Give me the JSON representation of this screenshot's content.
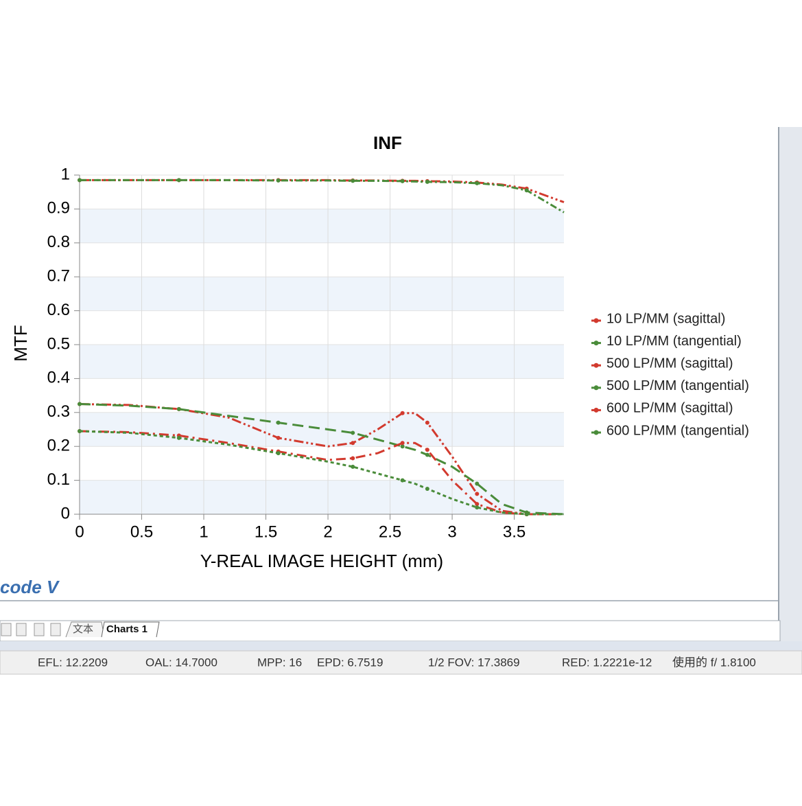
{
  "chart_data": {
    "type": "line",
    "title": "INF",
    "x_label": "Y-REAL IMAGE HEIGHT (mm)",
    "y_label": "MTF",
    "x": [
      0,
      0.4,
      0.8,
      1.2,
      1.6,
      2.0,
      2.2,
      2.4,
      2.6,
      2.7,
      2.8,
      3.0,
      3.2,
      3.4,
      3.6,
      3.9
    ],
    "series": [
      {
        "name": "10 LP/MM (sagittal)",
        "color": "#d23a2e",
        "values": [
          0.985,
          0.985,
          0.985,
          0.985,
          0.985,
          0.985,
          0.984,
          0.984,
          0.983,
          0.983,
          0.982,
          0.981,
          0.978,
          0.972,
          0.96,
          0.92
        ]
      },
      {
        "name": "10 LP/MM (tangential)",
        "color": "#4a8c3a",
        "values": [
          0.985,
          0.985,
          0.985,
          0.985,
          0.984,
          0.984,
          0.983,
          0.983,
          0.982,
          0.981,
          0.98,
          0.979,
          0.976,
          0.97,
          0.955,
          0.89
        ]
      },
      {
        "name": "500 LP/MM (sagittal)",
        "color": "#d23a2e",
        "values": [
          0.325,
          0.322,
          0.31,
          0.285,
          0.225,
          0.2,
          0.21,
          0.25,
          0.298,
          0.298,
          0.27,
          0.17,
          0.06,
          0.01,
          0,
          0
        ]
      },
      {
        "name": "500 LP/MM (tangential)",
        "color": "#4a8c3a",
        "values": [
          0.325,
          0.32,
          0.31,
          0.29,
          0.27,
          0.25,
          0.24,
          0.22,
          0.2,
          0.19,
          0.175,
          0.14,
          0.09,
          0.03,
          0.005,
          0
        ]
      },
      {
        "name": "600 LP/MM (sagittal)",
        "color": "#d23a2e",
        "values": [
          0.245,
          0.242,
          0.232,
          0.21,
          0.185,
          0.16,
          0.165,
          0.18,
          0.21,
          0.21,
          0.19,
          0.1,
          0.03,
          0.005,
          0,
          0
        ]
      },
      {
        "name": "600 LP/MM (tangential)",
        "color": "#4a8c3a",
        "values": [
          0.245,
          0.24,
          0.225,
          0.205,
          0.18,
          0.155,
          0.14,
          0.12,
          0.1,
          0.09,
          0.075,
          0.045,
          0.02,
          0.005,
          0,
          0
        ]
      }
    ],
    "xlim": [
      0,
      3.9
    ],
    "ylim": [
      0,
      1
    ],
    "xticks": [
      0,
      0.5,
      1,
      1.5,
      2,
      2.5,
      3,
      3.5
    ],
    "yticks": [
      0,
      0.1,
      0.2,
      0.3,
      0.4,
      0.5,
      0.6,
      0.7,
      0.8,
      0.9,
      1
    ],
    "grid": true,
    "legend": "right"
  },
  "logo": "code V",
  "tabs": [
    "文本",
    "Charts 1"
  ],
  "status_bar": [
    "EFL: 12.2209",
    "OAL: 14.7000",
    "MPP: 16",
    "EPD: 6.7519",
    "1/2 FOV: 17.3869",
    "RED: 1.2221e-12",
    "使用的 f/ 1.8100"
  ]
}
